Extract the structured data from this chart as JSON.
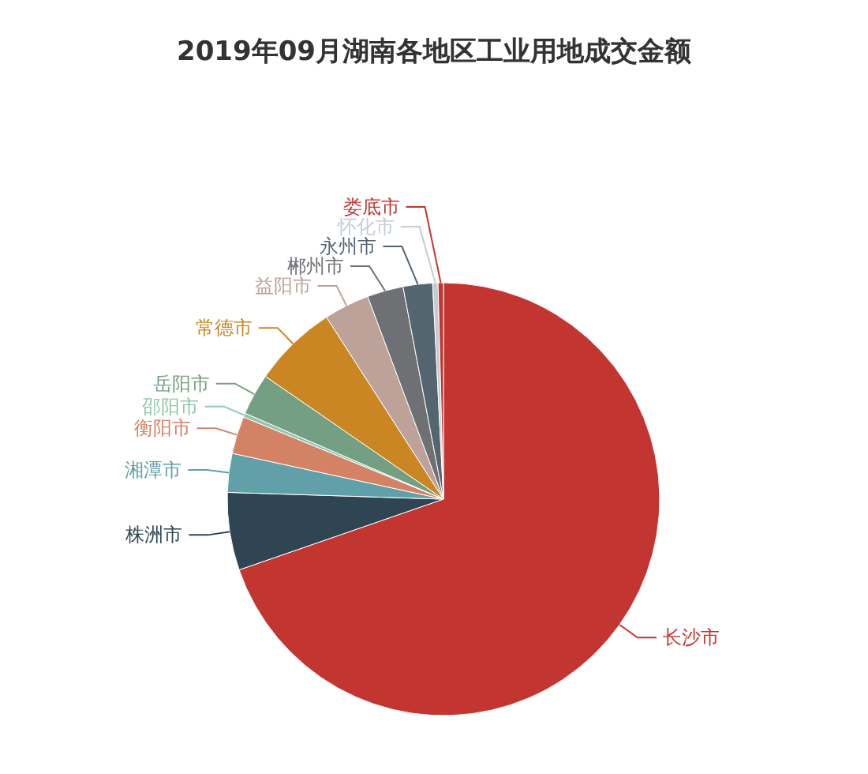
{
  "chart_data": {
    "type": "pie",
    "title": "2019年09月湖南各地区工业用地成交金额",
    "categories": [
      "长沙市",
      "株洲市",
      "湘潭市",
      "衡阳市",
      "邵阳市",
      "岳阳市",
      "常德市",
      "益阳市",
      "郴州市",
      "永州市",
      "怀化市",
      "娄底市"
    ],
    "values": [
      69.7,
      5.8,
      2.9,
      2.8,
      0.3,
      3.1,
      6.3,
      3.4,
      2.7,
      2.2,
      0.4,
      0.4
    ],
    "colors": [
      "#c23531",
      "#2f4554",
      "#61a0a8",
      "#d48265",
      "#91c7ae",
      "#749f83",
      "#ca8622",
      "#bda29a",
      "#6e7074",
      "#546570",
      "#c4ccd3",
      "#c23531"
    ]
  }
}
